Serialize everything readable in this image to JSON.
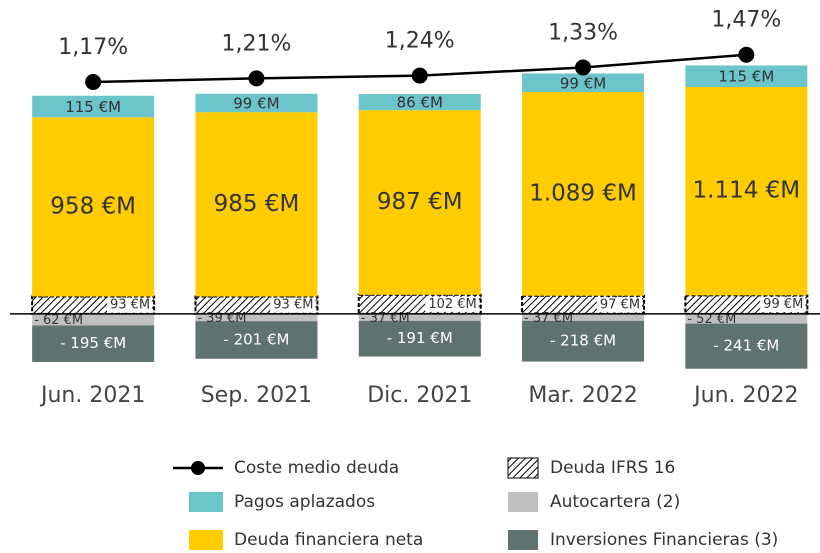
{
  "chart_data": {
    "type": "stacked-bar-line",
    "categories": [
      "Jun. 2021",
      "Sep. 2021",
      "Dic. 2021",
      "Mar. 2022",
      "Jun. 2022"
    ],
    "ylim": [
      -300,
      1400
    ],
    "y2lim": [
      -2,
      1.5
    ],
    "series": [
      {
        "name": "Deuda IFRS 16",
        "color": "#000000",
        "pattern": "hatch",
        "values": [
          93,
          93,
          102,
          97,
          99
        ],
        "value_labels": [
          "93 €M",
          "93 €M",
          "102 €M",
          "97 €M",
          "99 €M"
        ]
      },
      {
        "name": "Deuda financiera neta",
        "color": "#ffcc00",
        "values": [
          958,
          985,
          987,
          1089,
          1114
        ],
        "value_labels": [
          "958 €M",
          "985 €M",
          "987 €M",
          "1.089 €M",
          "1.114 €M"
        ]
      },
      {
        "name": "Pagos aplazados",
        "color": "#6cc5cb",
        "values": [
          115,
          99,
          86,
          99,
          115
        ],
        "value_labels": [
          "115 €M",
          "99 €M",
          "86 €M",
          "99 €M",
          "115 €M"
        ]
      },
      {
        "name": "Autocartera (2)",
        "color": "#c0c0c0",
        "values": [
          -62,
          -39,
          -37,
          -37,
          -52
        ],
        "value_labels": [
          "- 62 €M",
          "- 39 €M",
          "- 37 €M",
          "- 37 €M",
          "- 52 €M"
        ]
      },
      {
        "name": "Inversiones Financieras (3)",
        "color": "#5e726f",
        "values": [
          -195,
          -201,
          -191,
          -218,
          -241
        ],
        "value_labels": [
          "- 195 €M",
          "- 201 €M",
          "- 191 €M",
          "- 218 €M",
          "- 241 €M"
        ]
      }
    ],
    "line": {
      "name": "Coste medio deuda",
      "color": "#000000",
      "axis": "y2",
      "values": [
        1.17,
        1.21,
        1.24,
        1.33,
        1.47
      ],
      "value_labels": [
        "1,17%",
        "1,21%",
        "1,24%",
        "1,33%",
        "1,47%"
      ]
    }
  }
}
